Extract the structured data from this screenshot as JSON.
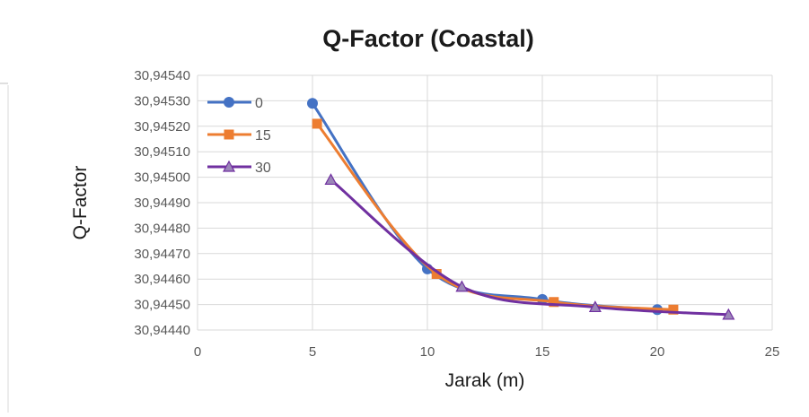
{
  "chart_data": {
    "type": "line",
    "title": "Q-Factor (Coastal)",
    "xlabel": "Jarak (m)",
    "ylabel": "Q-Factor",
    "xlim": [
      0,
      25
    ],
    "ylim": [
      30.9444,
      30.9454
    ],
    "x_ticks": [
      "0",
      "5",
      "10",
      "15",
      "20",
      "25"
    ],
    "y_ticks": [
      "30,94440",
      "30,94450",
      "30,94460",
      "30,94470",
      "30,94480",
      "30,94490",
      "30,94500",
      "30,94510",
      "30,94520",
      "30,94530",
      "30,94540"
    ],
    "grid": true,
    "legend_position": "top-left",
    "series": [
      {
        "name": "0",
        "color": "#4472C4",
        "marker": "circle",
        "x": [
          5,
          10,
          15,
          20
        ],
        "y": [
          30.94529,
          30.94464,
          30.94452,
          30.94448
        ]
      },
      {
        "name": "15",
        "color": "#ED7D31",
        "marker": "square",
        "x": [
          5.2,
          10.4,
          15.5,
          20.7
        ],
        "y": [
          30.94521,
          30.94462,
          30.94451,
          30.94448
        ]
      },
      {
        "name": "30",
        "color": "#7030A0",
        "marker": "triangle",
        "x": [
          5.8,
          11.5,
          17.3,
          23.1
        ],
        "y": [
          30.94499,
          30.94457,
          30.94449,
          30.94446
        ]
      }
    ]
  }
}
